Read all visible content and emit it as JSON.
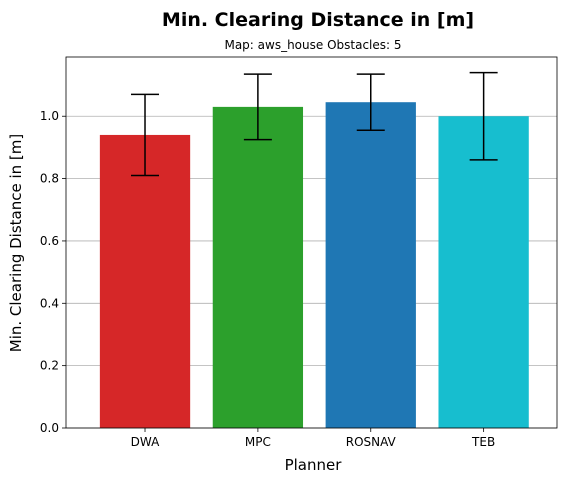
{
  "chart_data": {
    "type": "bar",
    "title": "Min. Clearing Distance in [m]",
    "subtitle": "Map: aws_house Obstacles: 5",
    "xlabel": "Planner",
    "ylabel": "Min. Clearing Distance in [m]",
    "categories": [
      "DWA",
      "MPC",
      "ROSNAV",
      "TEB"
    ],
    "values": [
      0.94,
      1.03,
      1.045,
      1.0
    ],
    "errors": [
      0.13,
      0.105,
      0.09,
      0.14
    ],
    "colors": [
      "#d62728",
      "#2ca02c",
      "#1f77b4",
      "#17becf"
    ],
    "ylim": [
      0,
      1.19
    ],
    "yticks": [
      0.0,
      0.2,
      0.4,
      0.6,
      0.8,
      1.0
    ],
    "ytick_labels": [
      "0.0",
      "0.2",
      "0.4",
      "0.6",
      "0.8",
      "1.0"
    ],
    "grid": "y-axis",
    "legend": "none"
  }
}
